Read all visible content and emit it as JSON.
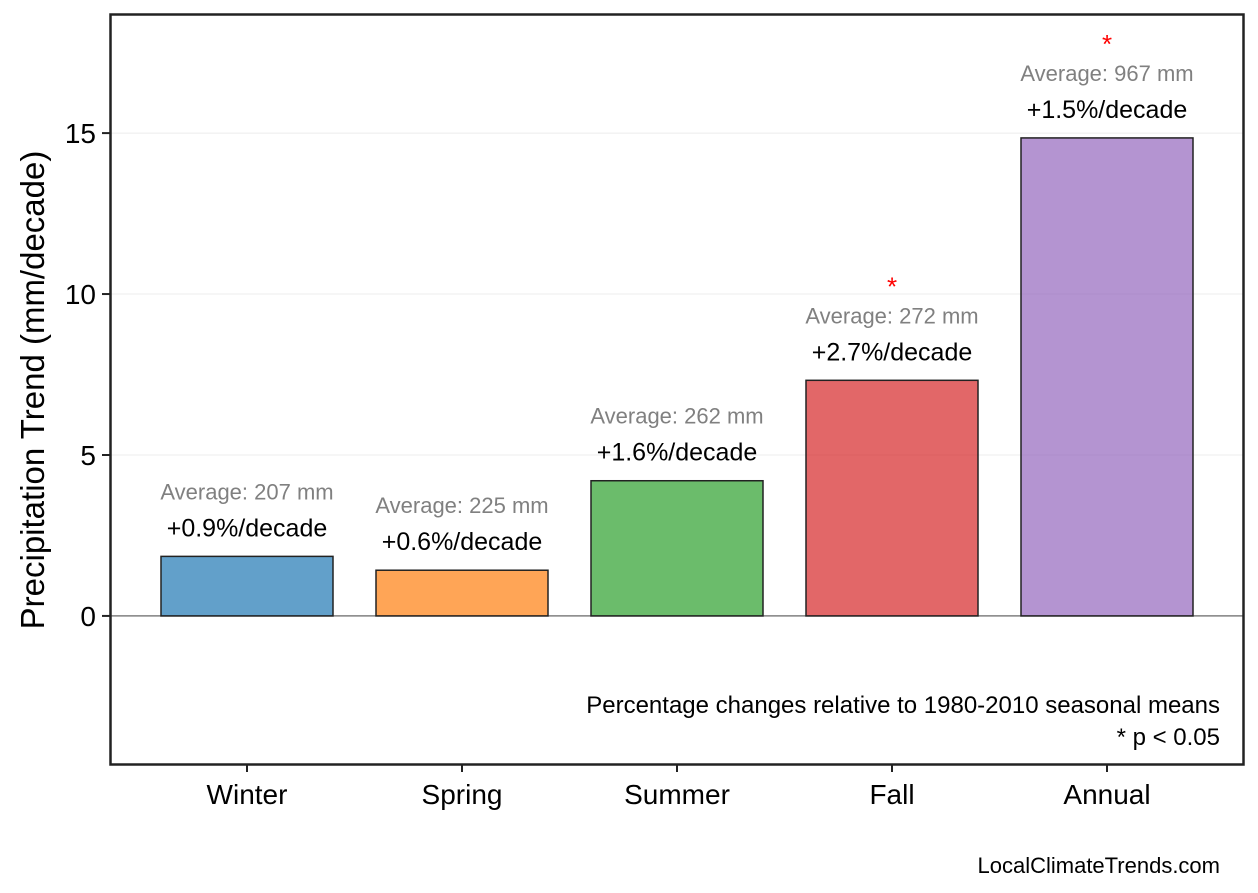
{
  "chart_data": {
    "type": "bar",
    "categories": [
      "Winter",
      "Spring",
      "Summer",
      "Fall",
      "Annual"
    ],
    "values": [
      1.85,
      1.42,
      4.2,
      7.32,
      14.85
    ],
    "colors": [
      "#1f77b4",
      "#ff7f0e",
      "#2ca02c",
      "#d62728",
      "#9467bd"
    ],
    "bar_opacity": 0.7,
    "percent_labels": [
      "+0.9%/decade",
      "+0.6%/decade",
      "+1.6%/decade",
      "+2.7%/decade",
      "+1.5%/decade"
    ],
    "average_labels": [
      "Average: 207 mm",
      "Average: 225 mm",
      "Average: 262 mm",
      "Average: 272 mm",
      "Average: 967 mm"
    ],
    "significance": [
      "",
      "",
      "",
      "*",
      "*"
    ],
    "significance_color": "#ff0000",
    "ylabel": "Precipitation Trend (mm/decade)",
    "xlabel": "",
    "ylim": [
      -4.6,
      18.7
    ],
    "yticks": [
      0,
      5,
      10,
      15
    ],
    "grid": true,
    "zero_line_color": "#808080",
    "notes": [
      "Percentage changes relative to 1980-2010 seasonal means",
      "* p < 0.05"
    ],
    "credit": "LocalClimateTrends.com"
  }
}
